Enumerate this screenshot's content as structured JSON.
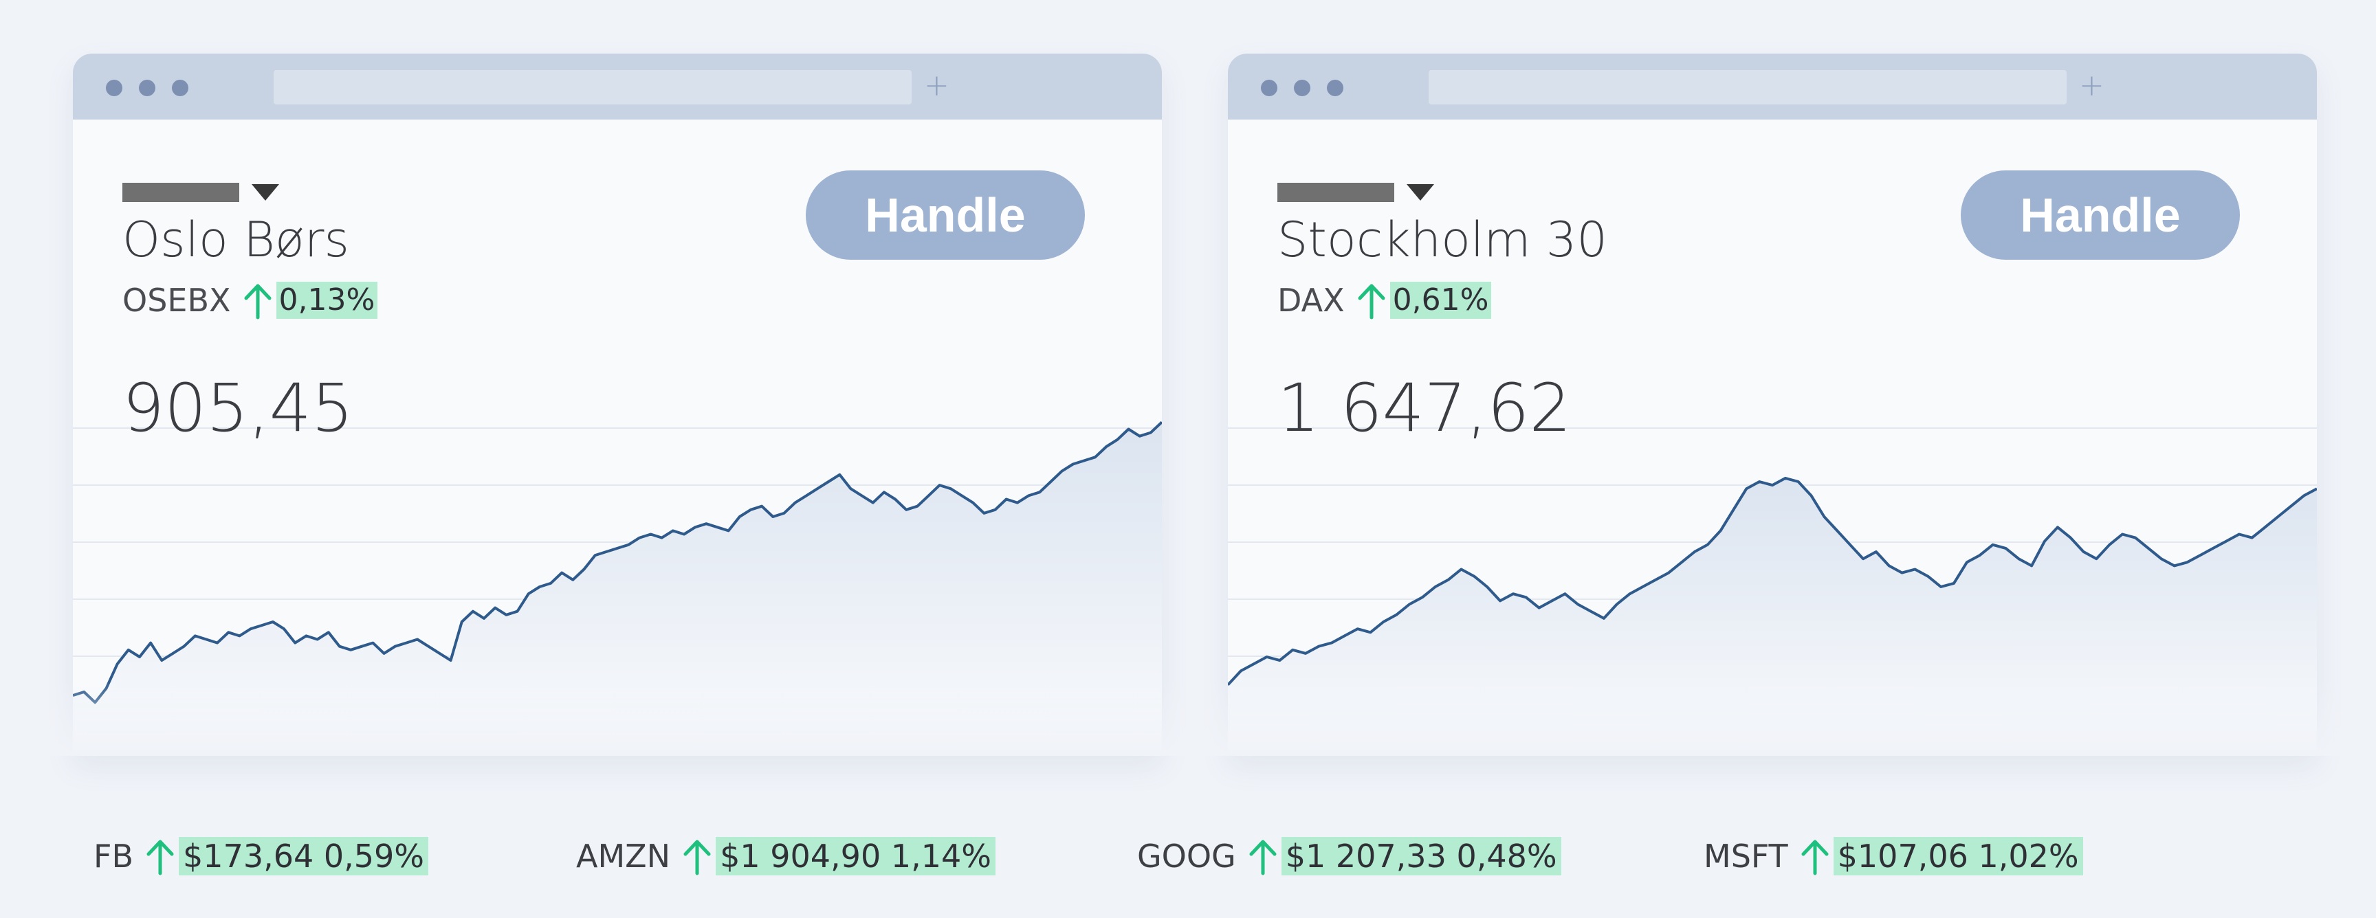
{
  "colors": {
    "up": "#1fbf7e",
    "badge": "#b4ecd2",
    "button": "#9eb3d2",
    "line": "#2f5a8c",
    "area": "#dbe4f0"
  },
  "windows": [
    {
      "title": "Oslo Børs",
      "ticker": "OSEBX",
      "change": "0,13%",
      "value": "905,45",
      "button": "Handle",
      "icons": [
        "window-dots",
        "plus-icon",
        "caret-down-icon",
        "arrow-up-icon"
      ]
    },
    {
      "title": "Stockholm 30",
      "ticker": "DAX",
      "change": "0,61%",
      "value": "1 647,62",
      "button": "Handle",
      "icons": [
        "window-dots",
        "plus-icon",
        "caret-down-icon",
        "arrow-up-icon"
      ]
    }
  ],
  "tickers": [
    {
      "symbol": "FB",
      "quote": "$173,64  0,59%"
    },
    {
      "symbol": "AMZN",
      "quote": "$1 904,90  1,14%"
    },
    {
      "symbol": "GOOG",
      "quote": "$1 207,33  0,48%"
    },
    {
      "symbol": "MSFT",
      "quote": "$107,06  1,02%"
    }
  ],
  "chart_data": [
    {
      "type": "area",
      "title": "",
      "xlabel": "",
      "ylabel": "",
      "grid": true,
      "series": [
        {
          "values": [
            9,
            10,
            7,
            11,
            18,
            22,
            20,
            24,
            19,
            21,
            23,
            26,
            25,
            24,
            27,
            26,
            28,
            29,
            30,
            28,
            24,
            26,
            25,
            27,
            23,
            22,
            23,
            24,
            21,
            23,
            24,
            25,
            23,
            21,
            19,
            30,
            33,
            31,
            34,
            32,
            33,
            38,
            40,
            41,
            44,
            42,
            45,
            49,
            50,
            51,
            52,
            54,
            55,
            54,
            56,
            55,
            57,
            58,
            57,
            56,
            60,
            62,
            63,
            60,
            61,
            64,
            66,
            68,
            70,
            72,
            68,
            66,
            64,
            67,
            65,
            62,
            63,
            66,
            69,
            68,
            66,
            64,
            61,
            62,
            65,
            64,
            66,
            67,
            70,
            73,
            75,
            76,
            77,
            80,
            82,
            85,
            83,
            84,
            87
          ]
        }
      ]
    },
    {
      "type": "area",
      "title": "",
      "xlabel": "",
      "ylabel": "",
      "grid": true,
      "series": [
        {
          "values": [
            12,
            16,
            18,
            20,
            19,
            22,
            21,
            23,
            24,
            26,
            28,
            27,
            30,
            32,
            35,
            37,
            40,
            42,
            45,
            43,
            40,
            36,
            38,
            37,
            34,
            36,
            38,
            35,
            33,
            31,
            35,
            38,
            40,
            42,
            44,
            47,
            50,
            52,
            56,
            62,
            68,
            70,
            69,
            71,
            70,
            66,
            60,
            56,
            52,
            48,
            50,
            46,
            44,
            45,
            43,
            40,
            41,
            47,
            49,
            52,
            51,
            48,
            46,
            53,
            57,
            54,
            50,
            48,
            52,
            55,
            54,
            51,
            48,
            46,
            47,
            49,
            51,
            53,
            55,
            54,
            57,
            60,
            63,
            66,
            68
          ]
        }
      ]
    }
  ]
}
